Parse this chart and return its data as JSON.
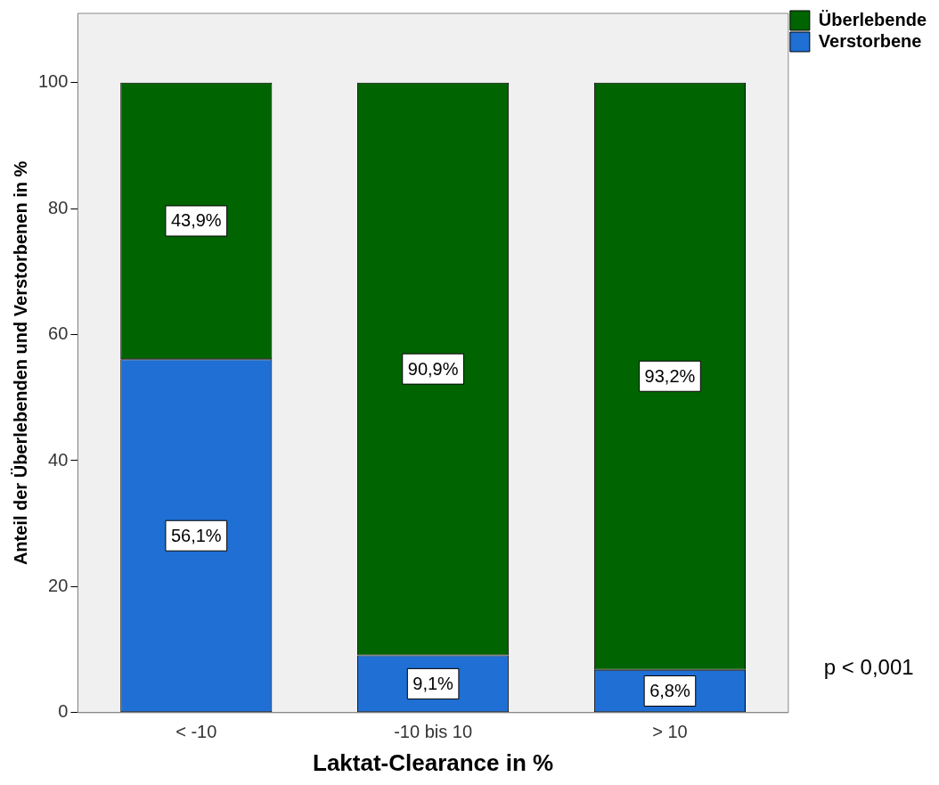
{
  "chart_data": {
    "type": "bar",
    "stacked": true,
    "categories": [
      "< -10",
      "-10 bis 10",
      "> 10"
    ],
    "xlabel": "Laktat-Clearance in %",
    "ylabel": "Anteil der Überlebenden und Verstorbenen in %",
    "ylim": [
      0,
      111
    ],
    "yticks": [
      0,
      20,
      40,
      60,
      80,
      100
    ],
    "grid": false,
    "legend": "top right",
    "series": [
      {
        "name": "Verstorbene",
        "color": "#1f6fd4",
        "values": [
          56.1,
          9.1,
          6.8
        ],
        "value_labels": [
          "56,1%",
          "9,1%",
          "6,8%"
        ]
      },
      {
        "name": "Überlebende",
        "color": "#006400",
        "values": [
          43.9,
          90.9,
          93.2
        ],
        "value_labels": [
          "43,9%",
          "90,9%",
          "93,2%"
        ]
      }
    ],
    "annotations": [
      "p < 0,001"
    ]
  }
}
